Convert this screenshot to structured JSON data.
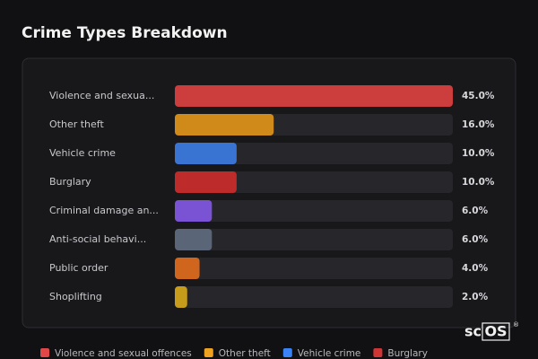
{
  "chart_data": {
    "type": "bar",
    "orientation": "horizontal",
    "title": "Crime Types Breakdown",
    "categories": [
      "Violence and sexua...",
      "Other theft",
      "Vehicle crime",
      "Burglary",
      "Criminal damage an...",
      "Anti-social behavi...",
      "Public order",
      "Shoplifting"
    ],
    "values": [
      45,
      16,
      10,
      10,
      6,
      6,
      4,
      2
    ],
    "value_labels": [
      "45.0%",
      "16.0%",
      "10.0%",
      "10.0%",
      "6.0%",
      "6.0%",
      "4.0%",
      "2.0%"
    ],
    "colors": [
      "#cc3d3d",
      "#d08a1a",
      "#3a74d2",
      "#bd2b2b",
      "#7a52d4",
      "#5a6577",
      "#d0651e",
      "#c79c1a"
    ],
    "xlim": [
      0,
      45
    ],
    "legend": [
      {
        "name": "Violence and sexual offences",
        "color": "#e04848"
      },
      {
        "name": "Other theft",
        "color": "#eea21f"
      },
      {
        "name": "Vehicle crime",
        "color": "#3b82f6"
      },
      {
        "name": "Burglary",
        "color": "#d03535"
      }
    ],
    "watermark": {
      "prefix": "sc",
      "boxed": "OS",
      "mark": "®"
    }
  }
}
